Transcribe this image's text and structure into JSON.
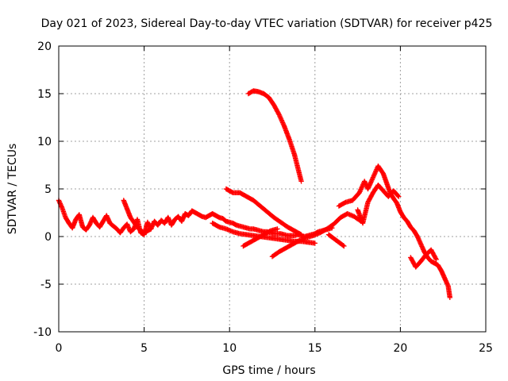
{
  "chart_data": {
    "type": "scatter",
    "title": "Day 021 of 2023, Sidereal Day-to-day VTEC variation (SDTVAR) for receiver p425",
    "xlabel": "GPS time / hours",
    "ylabel": "SDTVAR / TECUs",
    "xlim": [
      0,
      25
    ],
    "ylim": [
      -10,
      20
    ],
    "xticks": [
      0,
      5,
      10,
      15,
      20,
      25
    ],
    "yticks": [
      -10,
      -5,
      0,
      5,
      10,
      15,
      20
    ],
    "grid": true,
    "marker": "+",
    "series": [
      {
        "name": "SDTVAR",
        "color": "#ff0000",
        "tracks": [
          [
            [
              0.0,
              3.8
            ],
            [
              0.2,
              3.0
            ],
            [
              0.4,
              2.0
            ],
            [
              0.6,
              1.4
            ],
            [
              0.8,
              0.9
            ],
            [
              1.0,
              1.8
            ],
            [
              1.2,
              2.3
            ],
            [
              1.4,
              1.0
            ],
            [
              1.6,
              0.7
            ],
            [
              1.8,
              1.2
            ],
            [
              2.0,
              2.0
            ],
            [
              2.2,
              1.4
            ],
            [
              2.4,
              1.0
            ],
            [
              2.6,
              1.6
            ],
            [
              2.8,
              2.2
            ],
            [
              3.0,
              1.4
            ],
            [
              3.2,
              1.1
            ],
            [
              3.4,
              0.8
            ],
            [
              3.6,
              0.4
            ],
            [
              3.8,
              0.9
            ],
            [
              4.0,
              1.3
            ],
            [
              4.2,
              0.5
            ],
            [
              4.4,
              0.8
            ],
            [
              4.6,
              1.8
            ],
            [
              4.8,
              0.4
            ],
            [
              5.0,
              0.2
            ],
            [
              5.2,
              1.5
            ],
            [
              5.4,
              0.8
            ],
            [
              5.6,
              1.6
            ],
            [
              5.8,
              1.2
            ],
            [
              6.0,
              1.7
            ],
            [
              6.2,
              1.4
            ],
            [
              6.4,
              2.0
            ],
            [
              6.6,
              1.2
            ],
            [
              6.8,
              1.8
            ],
            [
              7.0,
              2.1
            ],
            [
              7.2,
              1.6
            ],
            [
              7.4,
              2.4
            ],
            [
              7.6,
              2.2
            ],
            [
              7.8,
              2.7
            ],
            [
              8.0,
              2.5
            ],
            [
              8.2,
              2.3
            ],
            [
              8.4,
              2.1
            ],
            [
              8.6,
              2.0
            ],
            [
              8.8,
              2.2
            ],
            [
              9.0,
              2.4
            ],
            [
              9.2,
              2.2
            ],
            [
              9.4,
              2.0
            ],
            [
              9.6,
              1.9
            ],
            [
              9.8,
              1.6
            ],
            [
              10.0,
              1.5
            ],
            [
              10.2,
              1.4
            ],
            [
              10.4,
              1.2
            ],
            [
              10.6,
              1.1
            ],
            [
              10.8,
              1.0
            ],
            [
              11.0,
              0.9
            ],
            [
              11.2,
              0.8
            ],
            [
              11.4,
              0.8
            ],
            [
              11.6,
              0.7
            ],
            [
              11.8,
              0.6
            ],
            [
              12.0,
              0.5
            ],
            [
              12.2,
              0.5
            ],
            [
              12.4,
              0.4
            ],
            [
              12.6,
              0.3
            ],
            [
              12.8,
              0.3
            ],
            [
              13.0,
              0.3
            ],
            [
              13.2,
              0.2
            ],
            [
              13.4,
              0.1
            ],
            [
              13.6,
              0.1
            ],
            [
              13.8,
              0.1
            ],
            [
              14.0,
              0.2
            ],
            [
              14.2,
              0.1
            ],
            [
              14.4,
              0.0
            ],
            [
              14.6,
              0.1
            ],
            [
              14.8,
              0.2
            ],
            [
              15.0,
              0.3
            ],
            [
              15.2,
              0.5
            ],
            [
              15.4,
              0.6
            ],
            [
              15.6,
              0.7
            ],
            [
              15.8,
              0.8
            ],
            [
              16.0,
              0.9
            ]
          ],
          [
            [
              3.8,
              3.8
            ],
            [
              4.0,
              2.9
            ],
            [
              4.2,
              2.0
            ],
            [
              4.4,
              1.5
            ],
            [
              4.6,
              1.0
            ],
            [
              4.8,
              0.6
            ],
            [
              5.0,
              0.4
            ],
            [
              5.2,
              0.6
            ],
            [
              5.4,
              0.8
            ]
          ],
          [
            [
              9.8,
              5.0
            ],
            [
              10.2,
              4.6
            ],
            [
              10.6,
              4.6
            ],
            [
              11.0,
              4.2
            ],
            [
              11.4,
              3.8
            ],
            [
              11.8,
              3.2
            ],
            [
              12.2,
              2.6
            ],
            [
              12.6,
              2.0
            ],
            [
              13.0,
              1.5
            ],
            [
              13.4,
              1.0
            ],
            [
              13.8,
              0.6
            ],
            [
              14.2,
              0.2
            ]
          ],
          [
            [
              9.0,
              1.4
            ],
            [
              9.4,
              1.0
            ],
            [
              9.8,
              0.8
            ],
            [
              10.2,
              0.5
            ],
            [
              10.6,
              0.3
            ],
            [
              11.0,
              0.2
            ],
            [
              11.4,
              0.1
            ],
            [
              11.8,
              0.0
            ],
            [
              12.2,
              -0.1
            ],
            [
              12.6,
              -0.2
            ],
            [
              13.0,
              -0.3
            ],
            [
              13.4,
              -0.4
            ],
            [
              13.8,
              -0.5
            ],
            [
              14.2,
              -0.5
            ],
            [
              14.6,
              -0.6
            ],
            [
              15.0,
              -0.7
            ]
          ],
          [
            [
              10.8,
              -1.0
            ],
            [
              11.2,
              -0.6
            ],
            [
              11.6,
              -0.2
            ],
            [
              12.0,
              0.2
            ],
            [
              12.4,
              0.6
            ],
            [
              12.8,
              0.8
            ]
          ],
          [
            [
              12.5,
              -2.1
            ],
            [
              12.9,
              -1.6
            ],
            [
              13.3,
              -1.2
            ],
            [
              13.7,
              -0.8
            ],
            [
              14.1,
              -0.4
            ],
            [
              14.5,
              -0.1
            ],
            [
              14.9,
              0.1
            ],
            [
              15.3,
              0.4
            ],
            [
              15.7,
              0.8
            ],
            [
              16.1,
              1.3
            ],
            [
              16.5,
              2.0
            ],
            [
              16.9,
              2.4
            ],
            [
              17.3,
              2.1
            ],
            [
              17.7,
              1.6
            ]
          ],
          [
            [
              15.8,
              0.2
            ],
            [
              16.1,
              -0.2
            ],
            [
              16.4,
              -0.6
            ],
            [
              16.7,
              -1.0
            ]
          ],
          [
            [
              16.4,
              3.2
            ],
            [
              16.8,
              3.6
            ],
            [
              17.2,
              3.8
            ],
            [
              17.6,
              4.6
            ],
            [
              17.9,
              5.8
            ],
            [
              18.1,
              5.0
            ],
            [
              18.4,
              6.2
            ],
            [
              18.7,
              7.4
            ],
            [
              19.0,
              6.6
            ],
            [
              19.2,
              5.6
            ],
            [
              19.4,
              4.6
            ],
            [
              19.6,
              4.0
            ],
            [
              19.8,
              3.5
            ],
            [
              20.0,
              2.6
            ],
            [
              20.2,
              2.0
            ],
            [
              20.4,
              1.6
            ],
            [
              20.6,
              1.0
            ],
            [
              20.8,
              0.6
            ],
            [
              21.0,
              0.0
            ],
            [
              21.2,
              -0.8
            ],
            [
              21.4,
              -1.6
            ],
            [
              21.6,
              -2.2
            ],
            [
              21.8,
              -2.6
            ],
            [
              22.0,
              -2.8
            ],
            [
              22.2,
              -3.0
            ],
            [
              22.4,
              -3.6
            ],
            [
              22.6,
              -4.4
            ],
            [
              22.8,
              -5.2
            ],
            [
              22.9,
              -6.4
            ]
          ],
          [
            [
              17.5,
              2.8
            ],
            [
              17.8,
              1.4
            ],
            [
              18.1,
              3.6
            ],
            [
              18.4,
              4.6
            ],
            [
              18.7,
              5.4
            ],
            [
              19.0,
              4.8
            ],
            [
              19.3,
              4.2
            ],
            [
              19.6,
              4.8
            ],
            [
              19.9,
              4.2
            ]
          ],
          [
            [
              20.6,
              -2.2
            ],
            [
              20.9,
              -3.2
            ],
            [
              21.2,
              -2.6
            ],
            [
              21.5,
              -1.9
            ],
            [
              21.8,
              -1.4
            ],
            [
              22.1,
              -2.4
            ]
          ],
          [
            [
              11.1,
              15.0
            ],
            [
              11.4,
              15.3
            ],
            [
              11.7,
              15.2
            ],
            [
              12.0,
              15.0
            ],
            [
              12.3,
              14.6
            ],
            [
              12.6,
              13.8
            ],
            [
              12.9,
              12.8
            ],
            [
              13.2,
              11.6
            ],
            [
              13.5,
              10.2
            ],
            [
              13.8,
              8.6
            ],
            [
              14.0,
              7.2
            ],
            [
              14.2,
              5.8
            ]
          ]
        ]
      }
    ]
  }
}
